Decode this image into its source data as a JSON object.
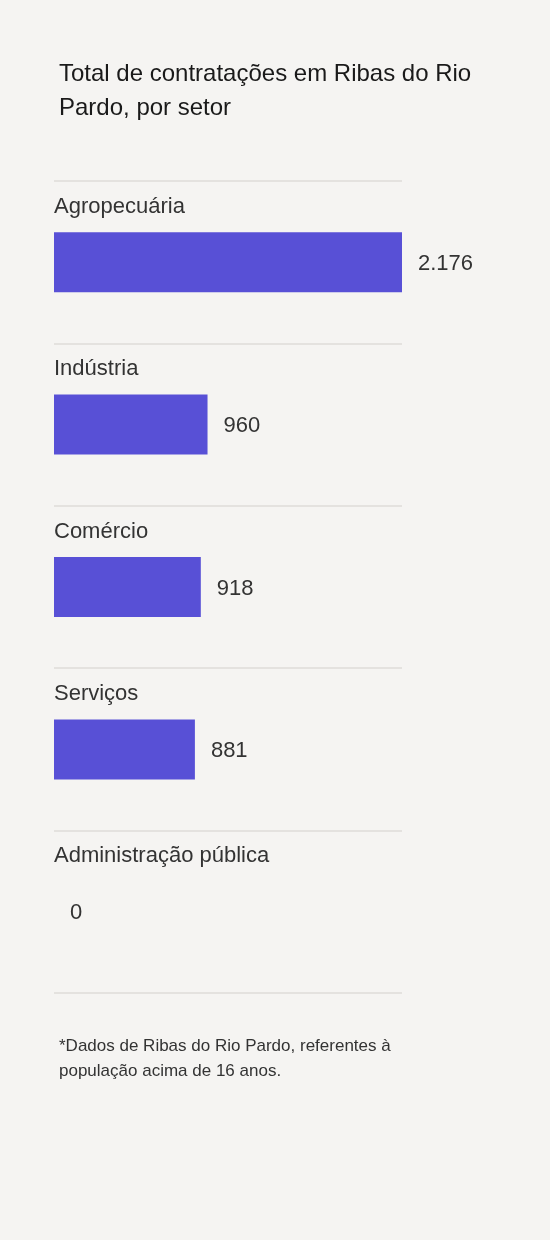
{
  "chart_data": {
    "type": "bar",
    "orientation": "horizontal",
    "title": "Total de contratações em Ribas do Rio Pardo, por setor",
    "categories": [
      "Agropecuária",
      "Indústria",
      "Comércio",
      "Serviços",
      "Administração pública"
    ],
    "values": [
      2176,
      960,
      918,
      881,
      0
    ],
    "value_labels": [
      "2.176",
      "960",
      "918",
      "881",
      "0"
    ],
    "color": "#5850d6",
    "grid": "y",
    "annotations": [
      "*Dados de Ribas do Rio Pardo, referentes à população acima de 16 anos."
    ]
  }
}
